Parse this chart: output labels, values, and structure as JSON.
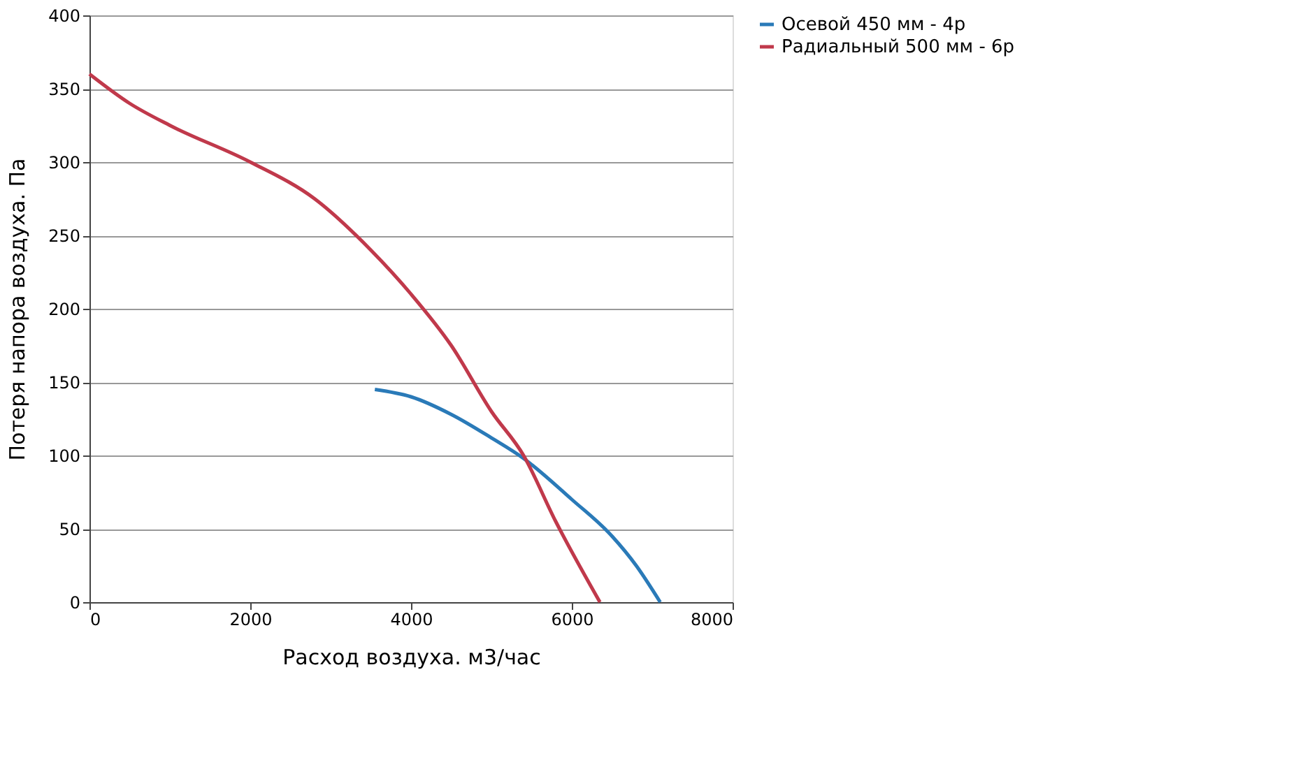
{
  "chart_data": {
    "type": "line",
    "xlabel": "Расход воздуха. м3/час",
    "ylabel": "Потеря напора воздуха. Па",
    "xlim": [
      0,
      8000
    ],
    "xticks": [
      0,
      2000,
      4000,
      6000,
      8000
    ],
    "ylim": [
      0,
      400
    ],
    "yticks": [
      0,
      50,
      100,
      150,
      200,
      250,
      300,
      350,
      400
    ],
    "grid": "y",
    "legend": "right",
    "marker": "none",
    "line_style": "solid",
    "series": [
      {
        "name": "Осевой 450 мм - 4р",
        "color": "#2a7ab8",
        "x": [
          3550,
          4000,
          4500,
          5000,
          5400,
          6000,
          6500,
          6800,
          7100
        ],
        "values": [
          145,
          140,
          128,
          112,
          98,
          70,
          45,
          25,
          0
        ]
      },
      {
        "name": "Радиальный 500 мм - 6р",
        "color": "#c0394b",
        "x": [
          0,
          500,
          1000,
          2000,
          2800,
          3500,
          4000,
          4500,
          5000,
          5400,
          5800,
          6350
        ],
        "values": [
          360,
          340,
          325,
          300,
          275,
          240,
          210,
          175,
          130,
          100,
          55,
          0
        ]
      }
    ]
  }
}
